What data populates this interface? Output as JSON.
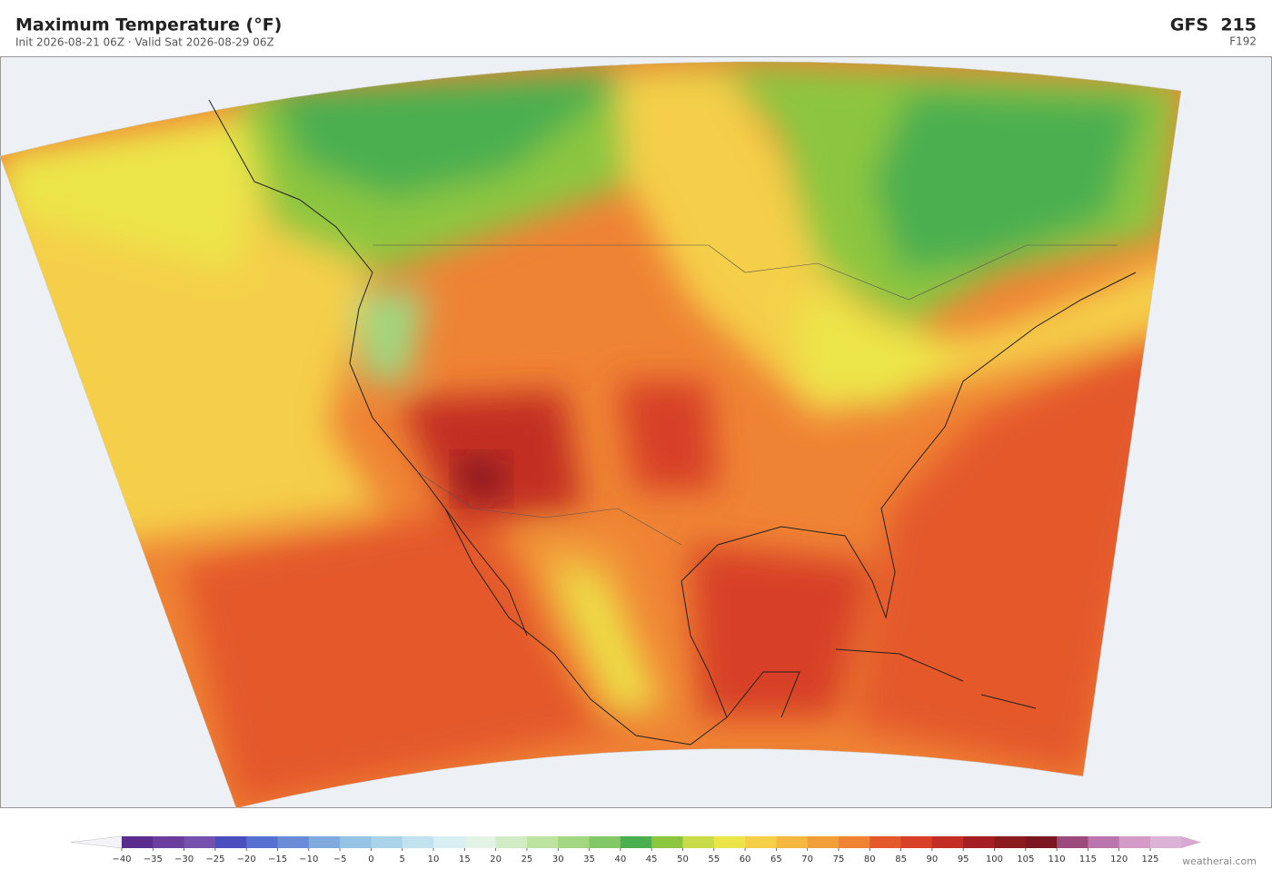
{
  "header": {
    "title": "Maximum Temperature  (°F)",
    "subtitle": "Init 2026-08-21 06Z  ·  Valid Sat 2026-08-29 06Z",
    "model": "GFS  215",
    "forecast_hour": "F192"
  },
  "colorbar": {
    "ticks": [
      {
        "value": -40,
        "label": "−40"
      },
      {
        "value": -35,
        "label": "−35"
      },
      {
        "value": -30,
        "label": "−30"
      },
      {
        "value": -25,
        "label": "−25"
      },
      {
        "value": -20,
        "label": "−20"
      },
      {
        "value": -15,
        "label": "−15"
      },
      {
        "value": -10,
        "label": "−10"
      },
      {
        "value": -5,
        "label": "−5"
      },
      0,
      5,
      10,
      15,
      20,
      25,
      30,
      35,
      40,
      45,
      50,
      55,
      60,
      65,
      70,
      75,
      80,
      85,
      90,
      95,
      100,
      105,
      110,
      115,
      120,
      125
    ],
    "colors": [
      "#5b2d8e",
      "#6a3d9e",
      "#7451ad",
      "#4b4fbe",
      "#5570cf",
      "#6a8cd6",
      "#80a9dd",
      "#95c3e4",
      "#aad3ea",
      "#c1e2ef",
      "#d7eef2",
      "#e2f3e6",
      "#d1ecc4",
      "#bce3a0",
      "#a2d680",
      "#83c866",
      "#4caf4f",
      "#8cc63f",
      "#c8dc4a",
      "#ece54a",
      "#f5cf48",
      "#f4b840",
      "#f29f3a",
      "#ef8334",
      "#e4592b",
      "#d73f26",
      "#c22e23",
      "#a51e22",
      "#8b1a1f",
      "#7a1620",
      "#9c4a7c",
      "#bb74ad",
      "#d49ac8",
      "#dcb2d6"
    ]
  },
  "watermark": "weatherai.com"
}
